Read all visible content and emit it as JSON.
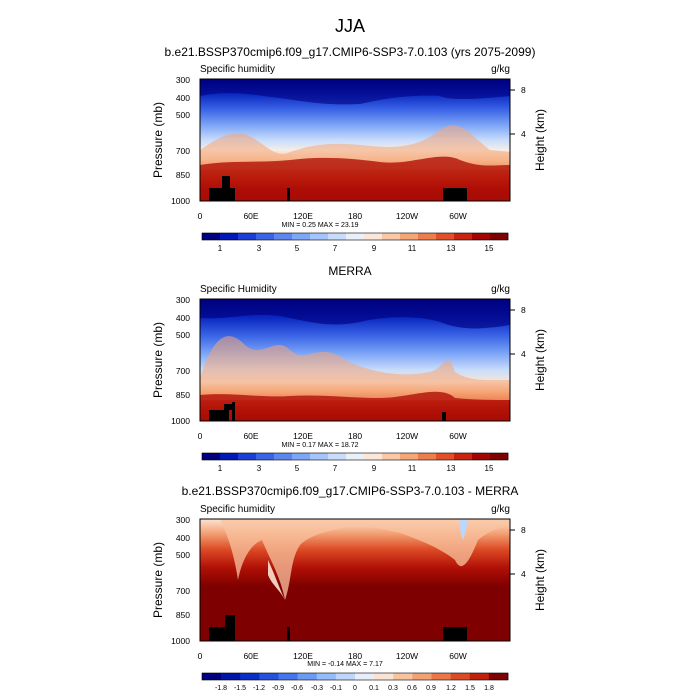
{
  "figure": {
    "title": "JJA"
  },
  "chart_data": [
    {
      "type": "heatmap",
      "title": "b.e21.BSSP370cmip6.f09_g17.CMIP6-SSP3-7.0.103 (yrs 2075-2099)",
      "left_label": "Specific humidity",
      "units": "g/kg",
      "ylabel": "Pressure (mb)",
      "y2label": "Height (km)",
      "pressure_ticks": [
        "300",
        "400",
        "500",
        "700",
        "850",
        "1000"
      ],
      "height_ticks": [
        "8",
        "4"
      ],
      "x_ticks": [
        "0",
        "60E",
        "120E",
        "180",
        "120W",
        "60W"
      ],
      "min": 0.25,
      "max": 23.19,
      "stats_label": "MIN =  0.25  MAX =  23.19",
      "colorbar_labels": [
        "1",
        "3",
        "5",
        "7",
        "9",
        "11",
        "13",
        "15"
      ],
      "colorbar_colors": [
        "#00007f",
        "#0018b5",
        "#1a3fd6",
        "#3a64e6",
        "#5b86f0",
        "#7ea6f7",
        "#a3c4fc",
        "#c8dcfb",
        "#eaf0f7",
        "#fbe7d9",
        "#f9c9a6",
        "#f5a676",
        "#ee7d4c",
        "#e2502a",
        "#c9240f",
        "#a30404",
        "#7f0000"
      ]
    },
    {
      "type": "heatmap",
      "title": "MERRA",
      "left_label": "Specific Humidity",
      "units": "g/kg",
      "ylabel": "Pressure (mb)",
      "y2label": "Height (km)",
      "pressure_ticks": [
        "300",
        "400",
        "500",
        "700",
        "850",
        "1000"
      ],
      "height_ticks": [
        "8",
        "4"
      ],
      "x_ticks": [
        "0",
        "60E",
        "120E",
        "180",
        "120W",
        "60W"
      ],
      "min": 0.17,
      "max": 18.72,
      "stats_label": "MIN =  0.17  MAX =  18.72",
      "colorbar_labels": [
        "1",
        "3",
        "5",
        "7",
        "9",
        "11",
        "13",
        "15"
      ],
      "colorbar_colors": [
        "#00007f",
        "#0018b5",
        "#1a3fd6",
        "#3a64e6",
        "#5b86f0",
        "#7ea6f7",
        "#a3c4fc",
        "#c8dcfb",
        "#eaf0f7",
        "#fbe7d9",
        "#f9c9a6",
        "#f5a676",
        "#ee7d4c",
        "#e2502a",
        "#c9240f",
        "#a30404",
        "#7f0000"
      ]
    },
    {
      "type": "heatmap",
      "title": "b.e21.BSSP370cmip6.f09_g17.CMIP6-SSP3-7.0.103 - MERRA",
      "left_label": "Specific humidity",
      "units": "g/kg",
      "ylabel": "Pressure (mb)",
      "y2label": "Height (km)",
      "pressure_ticks": [
        "300",
        "400",
        "500",
        "700",
        "850",
        "1000"
      ],
      "height_ticks": [
        "8",
        "4"
      ],
      "x_ticks": [
        "0",
        "60E",
        "120E",
        "180",
        "120W",
        "60W"
      ],
      "min": -0.14,
      "max": 7.17,
      "stats_label": "MIN = -0.14  MAX =  7.17",
      "colorbar_labels": [
        "-1.8",
        "-1.5",
        "-1.2",
        "-0.9",
        "-0.6",
        "-0.3",
        "-0.1",
        "0",
        "0.1",
        "0.3",
        "0.6",
        "0.9",
        "1.2",
        "1.5",
        "1.8"
      ],
      "colorbar_colors": [
        "#00007f",
        "#0014a8",
        "#0a2fc8",
        "#2452de",
        "#4576ec",
        "#6b9af5",
        "#93bcfa",
        "#bdd6fb",
        "#e6eefa",
        "#fbe3d3",
        "#f8c4a0",
        "#f3a072",
        "#ea7647",
        "#dc4a25",
        "#c1200b",
        "#7f0000"
      ]
    }
  ]
}
